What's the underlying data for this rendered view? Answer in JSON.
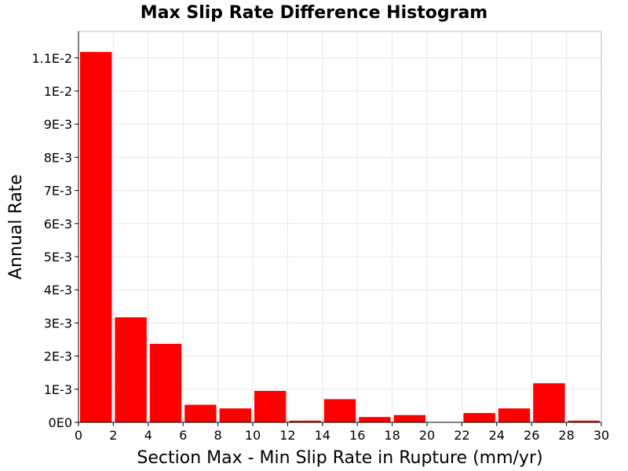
{
  "chart_data": {
    "type": "bar",
    "title": "Max Slip Rate Difference Histogram",
    "xlabel": "Section Max - Min Slip Rate in Rupture (mm/yr)",
    "ylabel": "Annual Rate",
    "xlim": [
      0,
      30
    ],
    "ylim": [
      0,
      0.0118
    ],
    "bin_width": 2,
    "x": [
      1,
      3,
      5,
      7,
      9,
      11,
      13,
      15,
      17,
      19,
      21,
      23,
      25,
      27,
      29
    ],
    "values": [
      0.01118,
      0.00317,
      0.00237,
      0.00053,
      0.00042,
      0.00095,
      5e-05,
      0.0007,
      0.00016,
      0.00022,
      0.0,
      0.00028,
      0.00042,
      0.00118,
      5e-05
    ],
    "bar_color": "#ff0000",
    "grid": true,
    "x_ticks": [
      0,
      2,
      4,
      6,
      8,
      10,
      12,
      14,
      16,
      18,
      20,
      22,
      24,
      26,
      28,
      30
    ],
    "x_tick_labels": [
      "0",
      "2",
      "4",
      "6",
      "8",
      "10",
      "12",
      "14",
      "16",
      "18",
      "20",
      "22",
      "24",
      "26",
      "28",
      "30"
    ],
    "y_ticks": [
      0,
      0.001,
      0.002,
      0.003,
      0.004,
      0.005,
      0.006,
      0.007,
      0.008,
      0.009,
      0.01,
      0.011
    ],
    "y_tick_labels": [
      "0E0",
      "1E-3",
      "2E-3",
      "3E-3",
      "4E-3",
      "5E-3",
      "6E-3",
      "7E-3",
      "8E-3",
      "9E-3",
      "1E-2",
      "1.1E-2"
    ]
  }
}
